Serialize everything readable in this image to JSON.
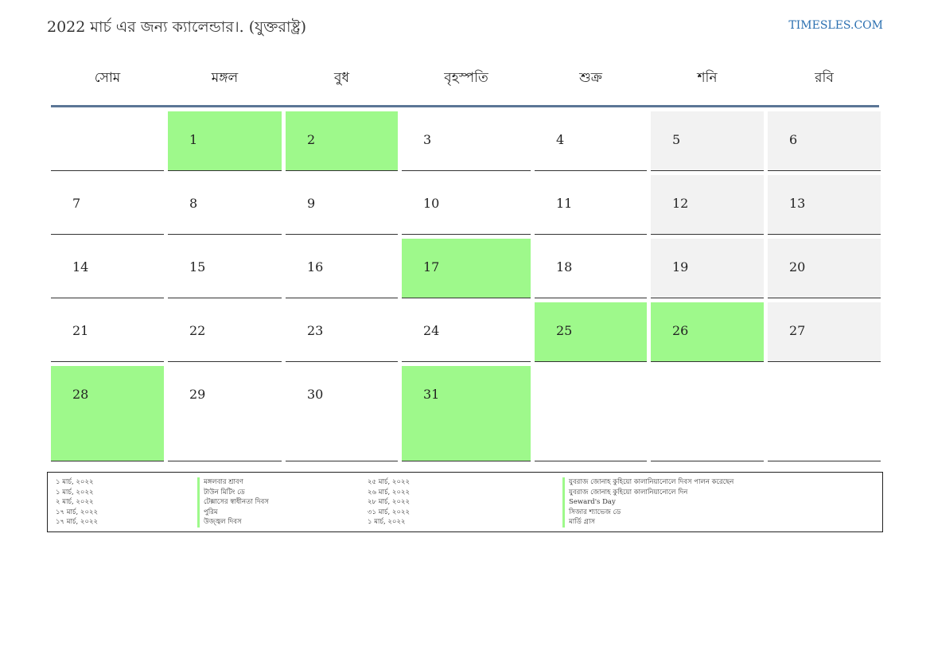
{
  "header": {
    "title": "2022 মার্চ এর জন্য ক্যালেন্ডার।. (যুক্তরাষ্ট্র)",
    "site": "TIMESLES.COM"
  },
  "colors": {
    "holiday": "#9ef98b",
    "weekend": "#f2f2f2",
    "header_rule": "#5b7696",
    "link": "#2a6fb0"
  },
  "weekdays": [
    "সোম",
    "মঙ্গল",
    "বুধ",
    "বৃহস্পতি",
    "শুক্র",
    "শনি",
    "রবি"
  ],
  "weeks": [
    [
      {
        "day": "",
        "type": "empty"
      },
      {
        "day": "1",
        "type": "holiday"
      },
      {
        "day": "2",
        "type": "holiday"
      },
      {
        "day": "3",
        "type": "normal"
      },
      {
        "day": "4",
        "type": "normal"
      },
      {
        "day": "5",
        "type": "weekend"
      },
      {
        "day": "6",
        "type": "weekend"
      }
    ],
    [
      {
        "day": "7",
        "type": "normal"
      },
      {
        "day": "8",
        "type": "normal"
      },
      {
        "day": "9",
        "type": "normal"
      },
      {
        "day": "10",
        "type": "normal"
      },
      {
        "day": "11",
        "type": "normal"
      },
      {
        "day": "12",
        "type": "weekend"
      },
      {
        "day": "13",
        "type": "weekend"
      }
    ],
    [
      {
        "day": "14",
        "type": "normal"
      },
      {
        "day": "15",
        "type": "normal"
      },
      {
        "day": "16",
        "type": "normal"
      },
      {
        "day": "17",
        "type": "holiday"
      },
      {
        "day": "18",
        "type": "normal"
      },
      {
        "day": "19",
        "type": "weekend"
      },
      {
        "day": "20",
        "type": "weekend"
      }
    ],
    [
      {
        "day": "21",
        "type": "normal"
      },
      {
        "day": "22",
        "type": "normal"
      },
      {
        "day": "23",
        "type": "normal"
      },
      {
        "day": "24",
        "type": "normal"
      },
      {
        "day": "25",
        "type": "holiday"
      },
      {
        "day": "26",
        "type": "holiday"
      },
      {
        "day": "27",
        "type": "weekend"
      }
    ],
    [
      {
        "day": "28",
        "type": "holiday"
      },
      {
        "day": "29",
        "type": "normal"
      },
      {
        "day": "30",
        "type": "normal"
      },
      {
        "day": "31",
        "type": "holiday"
      },
      {
        "day": "",
        "type": "empty"
      },
      {
        "day": "",
        "type": "empty"
      },
      {
        "day": "",
        "type": "empty"
      }
    ]
  ],
  "holidays": [
    {
      "date": "১ মার্চ, ২০২২",
      "name": "মঙ্গলবার শ্রাবণ"
    },
    {
      "date": "১ মার্চ, ২০২২",
      "name": "টাউন মিটিং ডে"
    },
    {
      "date": "২ মার্চ, ২০২২",
      "name": "টেক্সাসের স্বাধীনতা দিবস"
    },
    {
      "date": "১৭ মার্চ, ২০২২",
      "name": "পুরিম"
    },
    {
      "date": "১৭ মার্চ, ২০২২",
      "name": "উজ্জ্বল দিবস"
    },
    {
      "date": "২৫ মার্চ, ২০২২",
      "name": "যুবরাজ জোনাহ কুহিয়ো কালানিয়ানোলে দিবস পালন করেছেন"
    },
    {
      "date": "২৬ মার্চ, ২০২২",
      "name": "যুবরাজ জোনাহ কুহিয়ো কালানিয়ানোলে দিন"
    },
    {
      "date": "২৮ মার্চ, ২০২২",
      "name": "Seward's Day"
    },
    {
      "date": "৩১ মার্চ, ২০২২",
      "name": "সিজার শ্যাভেজ ডে"
    },
    {
      "date": "১ মার্চ, ২০২২",
      "name": "মার্ডি গ্রাস"
    }
  ]
}
